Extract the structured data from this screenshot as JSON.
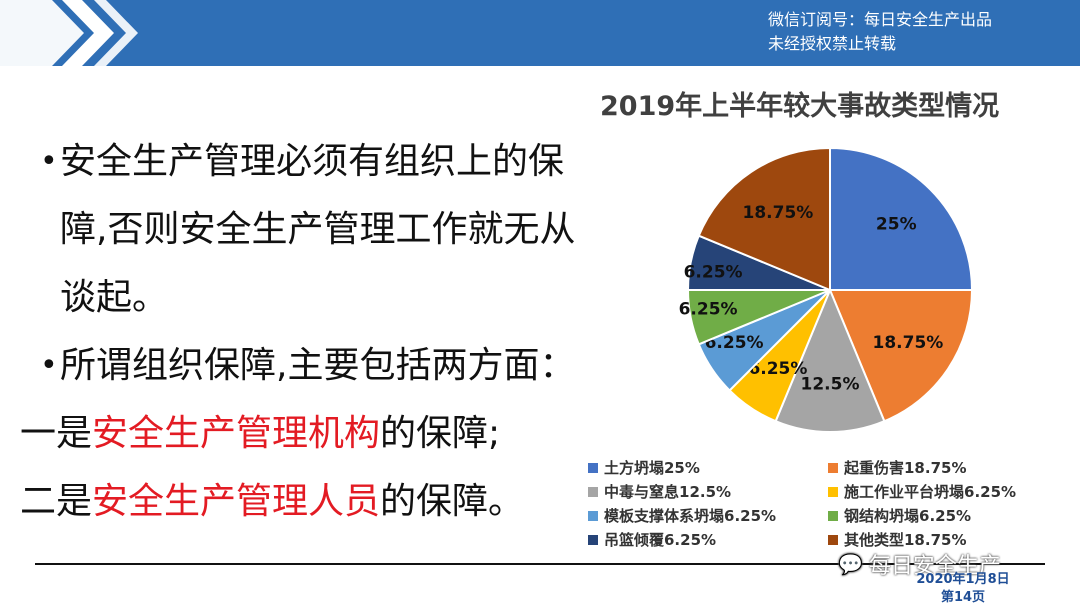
{
  "header": {
    "line1": "微信订阅号：每日安全生产出品",
    "line2": "未经授权禁止转载",
    "bar_color": "#2f6fb6"
  },
  "bullets": {
    "item1": "安全生产管理必须有组织上的保障,否则安全生产管理工作就无从谈起。",
    "item2": "所谓组织保障,主要包括两方面：",
    "line3_prefix": "一是",
    "line3_highlight": "安全生产管理机构",
    "line3_suffix": "的保障;",
    "line4_prefix": "二是",
    "line4_highlight": "安全生产管理人员",
    "line4_suffix": "的保障。",
    "highlight_color": "#e31b23"
  },
  "chart_data": {
    "type": "pie",
    "title": "2019年上半年较大事故类型情况",
    "slices": [
      {
        "name": "土方坍塌25%",
        "value": 25,
        "label": "25%",
        "color": "#4472c4"
      },
      {
        "name": "起重伤害18.75%",
        "value": 18.75,
        "label": "18.75%",
        "color": "#ed7d31"
      },
      {
        "name": "中毒与窒息12.5%",
        "value": 12.5,
        "label": "12.5%",
        "color": "#a5a5a5"
      },
      {
        "name": "施工作业平台坍塌6.25%",
        "value": 6.25,
        "label": "6.25%",
        "color": "#ffc000"
      },
      {
        "name": "模板支撑体系坍塌6.25%",
        "value": 6.25,
        "label": "6.25%",
        "color": "#5b9bd5"
      },
      {
        "name": "钢结构坍塌6.25%",
        "value": 6.25,
        "label": "6.25%",
        "color": "#70ad47"
      },
      {
        "name": "吊篮倾覆6.25%",
        "value": 6.25,
        "label": "6.25%",
        "color": "#264478"
      },
      {
        "name": "其他类型18.75%",
        "value": 18.75,
        "label": "18.75%",
        "color": "#9e480e"
      }
    ],
    "legend_position": "bottom"
  },
  "footer": {
    "watermark": "每日安全生产",
    "watermark_icon": "wechat-icon",
    "date": "2020年1月8日",
    "page": "第14页"
  }
}
